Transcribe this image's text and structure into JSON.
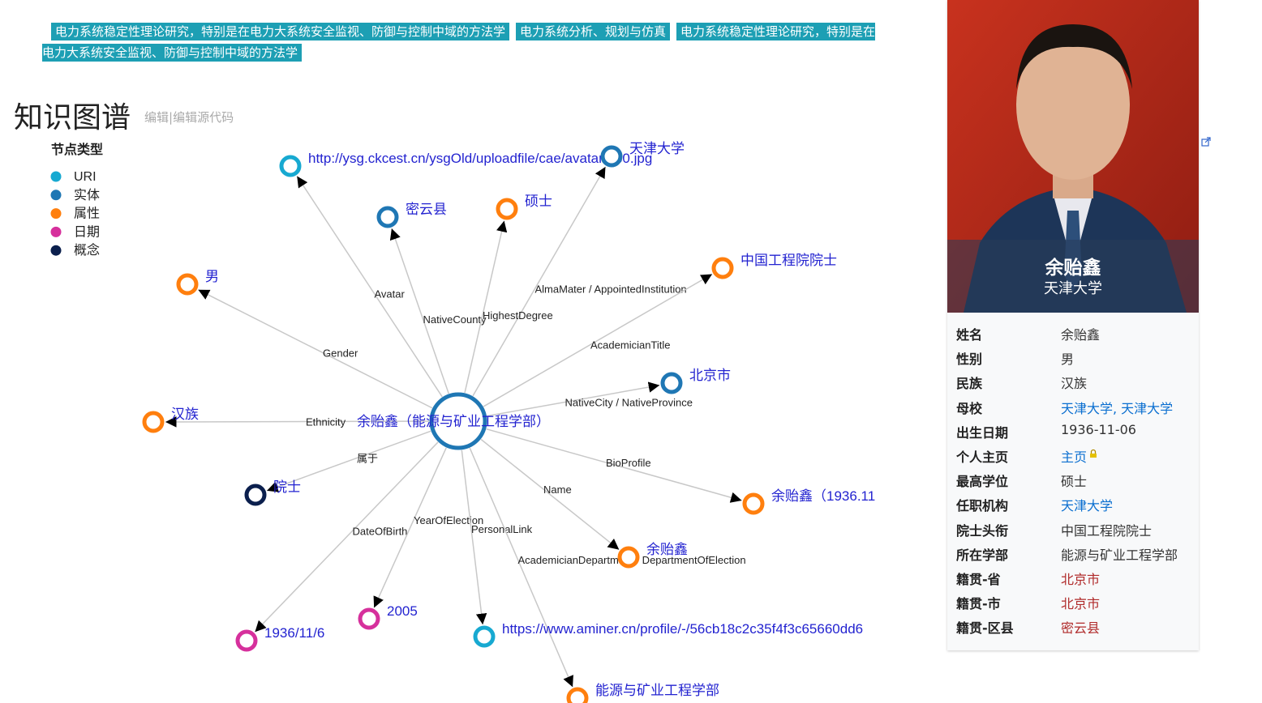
{
  "tags": [
    "电力系统稳定性理论研究，特别是在电力大系统安全监视、防御与控制中域的方法学",
    "电力系统分析、规划与仿真",
    "电力系统稳定性理论研究，特别是在电力大系统安全监视、防御与控制中域的方法学"
  ],
  "section": {
    "title": "知识图谱",
    "edit": "编辑",
    "separator": "|",
    "edit_source": "编辑源代码"
  },
  "legend": {
    "title": "节点类型",
    "items": [
      {
        "name": "URI",
        "color": "#17a9d1"
      },
      {
        "name": "实体",
        "color": "#1f77b4"
      },
      {
        "name": "属性",
        "color": "#ff7f0e"
      },
      {
        "name": "日期",
        "color": "#d6309c"
      },
      {
        "name": "概念",
        "color": "#0b1f4d"
      }
    ]
  },
  "graph": {
    "center": "余贻鑫（能源与矿业工程学部）",
    "nodes": [
      {
        "label": "http://ysg.ckcest.cn/ysgOld/uploadfile/cae/avatar/730.jpg",
        "type": "URI",
        "relation": "Avatar"
      },
      {
        "label": "天津大学",
        "type": "实体",
        "relation": "AlmaMater / AppointedInstitution"
      },
      {
        "label": "密云县",
        "type": "实体",
        "relation": "NativeCounty"
      },
      {
        "label": "硕士",
        "type": "属性",
        "relation": "HighestDegree"
      },
      {
        "label": "中国工程院院士",
        "type": "属性",
        "relation": "AcademicianTitle"
      },
      {
        "label": "男",
        "type": "属性",
        "relation": "Gender"
      },
      {
        "label": "北京市",
        "type": "实体",
        "relation": "NativeCity / NativeProvince"
      },
      {
        "label": "汉族",
        "type": "属性",
        "relation": "Ethnicity"
      },
      {
        "label": "院士",
        "type": "概念",
        "relation": "属于"
      },
      {
        "label": "余贻鑫（1936.11",
        "type": "属性",
        "relation": "BioProfile"
      },
      {
        "label": "余贻鑫",
        "type": "属性",
        "relation": "Name"
      },
      {
        "label": "1936/11/6",
        "type": "日期",
        "relation": "DateOfBirth"
      },
      {
        "label": "2005",
        "type": "日期",
        "relation": "YearOfElection"
      },
      {
        "label": "https://www.aminer.cn/profile/-/56cb18c2c35f4f3c65660dd6",
        "type": "URI",
        "relation": "PersonalLink"
      },
      {
        "label": "能源与矿业工程学部",
        "type": "属性",
        "relation": "AcademicianDepartment / DepartmentOfElection"
      }
    ]
  },
  "infobox": {
    "name": "余贻鑫",
    "affiliation": "天津大学",
    "rows": [
      {
        "label": "姓名",
        "value": "余贻鑫",
        "color": "#333333"
      },
      {
        "label": "性别",
        "value": "男",
        "color": "#333333"
      },
      {
        "label": "民族",
        "value": "汉族",
        "color": "#333333"
      },
      {
        "label": "母校",
        "value": "天津大学, 天津大学",
        "color": "#0b6fd0"
      },
      {
        "label": "出生日期",
        "value": "1936-11-06",
        "color": "#333333"
      },
      {
        "label": "个人主页",
        "value": "主页",
        "color": "#0b6fd0"
      },
      {
        "label": "最高学位",
        "value": "硕士",
        "color": "#333333"
      },
      {
        "label": "任职机构",
        "value": "天津大学",
        "color": "#0b6fd0"
      },
      {
        "label": "院士头衔",
        "value": "中国工程院院士",
        "color": "#333333"
      },
      {
        "label": "所在学部",
        "value": "能源与矿业工程学部",
        "color": "#333333"
      },
      {
        "label": "籍贯-省",
        "value": "北京市",
        "color": "#b02a2a"
      },
      {
        "label": "籍贯-市",
        "value": "北京市",
        "color": "#b02a2a"
      },
      {
        "label": "籍贯-区县",
        "value": "密云县",
        "color": "#b02a2a"
      }
    ]
  }
}
